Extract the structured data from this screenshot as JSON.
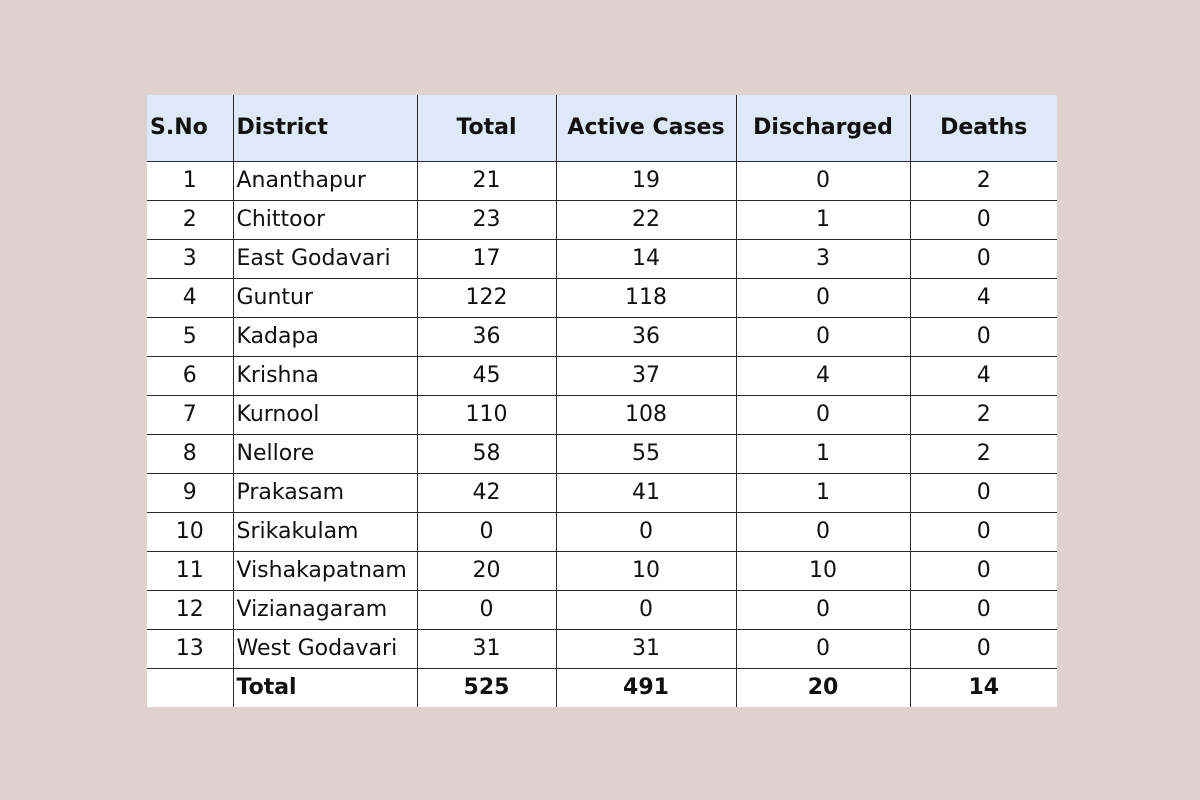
{
  "table": {
    "headers": {
      "sno": "S.No",
      "district": "District",
      "total": "Total",
      "active": "Active Cases",
      "discharged": "Discharged",
      "deaths": "Deaths"
    },
    "rows": [
      {
        "sno": "1",
        "district": "Ananthapur",
        "total": "21",
        "active": "19",
        "discharged": "0",
        "deaths": "2"
      },
      {
        "sno": "2",
        "district": "Chittoor",
        "total": "23",
        "active": "22",
        "discharged": "1",
        "deaths": "0"
      },
      {
        "sno": "3",
        "district": "East Godavari",
        "total": "17",
        "active": "14",
        "discharged": "3",
        "deaths": "0"
      },
      {
        "sno": "4",
        "district": "Guntur",
        "total": "122",
        "active": "118",
        "discharged": "0",
        "deaths": "4"
      },
      {
        "sno": "5",
        "district": "Kadapa",
        "total": "36",
        "active": "36",
        "discharged": "0",
        "deaths": "0"
      },
      {
        "sno": "6",
        "district": "Krishna",
        "total": "45",
        "active": "37",
        "discharged": "4",
        "deaths": "4"
      },
      {
        "sno": "7",
        "district": "Kurnool",
        "total": "110",
        "active": "108",
        "discharged": "0",
        "deaths": "2"
      },
      {
        "sno": "8",
        "district": "Nellore",
        "total": "58",
        "active": "55",
        "discharged": "1",
        "deaths": "2"
      },
      {
        "sno": "9",
        "district": "Prakasam",
        "total": "42",
        "active": "41",
        "discharged": "1",
        "deaths": "0"
      },
      {
        "sno": "10",
        "district": "Srikakulam",
        "total": "0",
        "active": "0",
        "discharged": "0",
        "deaths": "0"
      },
      {
        "sno": "11",
        "district": "Vishakapatnam",
        "total": "20",
        "active": "10",
        "discharged": "10",
        "deaths": "0"
      },
      {
        "sno": "12",
        "district": "Vizianagaram",
        "total": "0",
        "active": "0",
        "discharged": "0",
        "deaths": "0"
      },
      {
        "sno": "13",
        "district": "West Godavari",
        "total": "31",
        "active": "31",
        "discharged": "0",
        "deaths": "0"
      }
    ],
    "total_row": {
      "sno": "",
      "district": "Total",
      "total": "525",
      "active": "491",
      "discharged": "20",
      "deaths": "14"
    }
  },
  "colors": {
    "page_background": "#e1d0d0",
    "header_background": "#dde9f6",
    "table_background": "#ffffff"
  }
}
